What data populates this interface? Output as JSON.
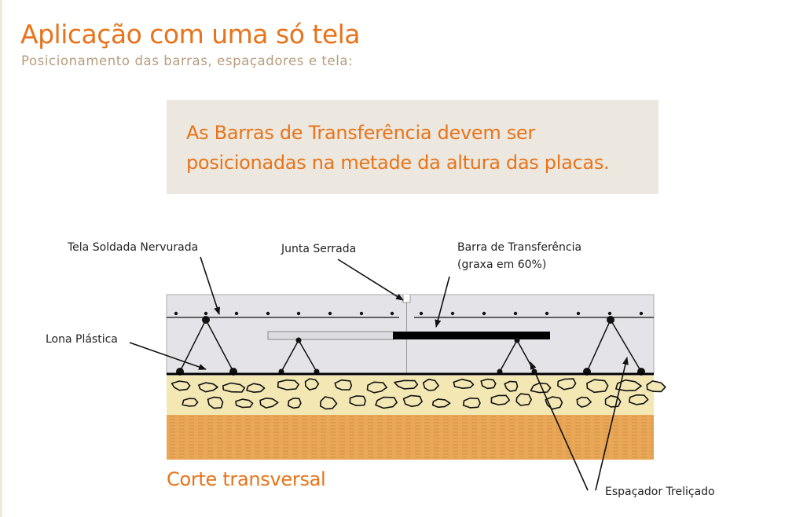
{
  "header": {
    "title": "Aplicação com uma só tela",
    "subtitle": "Posicionamento das barras, espaçadores e tela:"
  },
  "note": {
    "line1": "As Barras de Transferência devem ser",
    "line2": "posicionadas na metade da altura das placas."
  },
  "diagram": {
    "labels": {
      "mesh": "Tela Soldada Nervurada",
      "joint": "Junta Serrada",
      "dowel": "Barra de Transferência",
      "dowel_note": "(graxa em 60%)",
      "membrane": "Lona Plástica",
      "spacer": "Espaçador Treliçado"
    },
    "caption": "Corte transversal",
    "colors": {
      "accent": "#e8731a",
      "subtitle": "#b89c7e",
      "note_bg": "#ece8df",
      "slab": "#e4e4e8",
      "gravel": "#f3e7b4",
      "soil": "#e9a757"
    }
  }
}
